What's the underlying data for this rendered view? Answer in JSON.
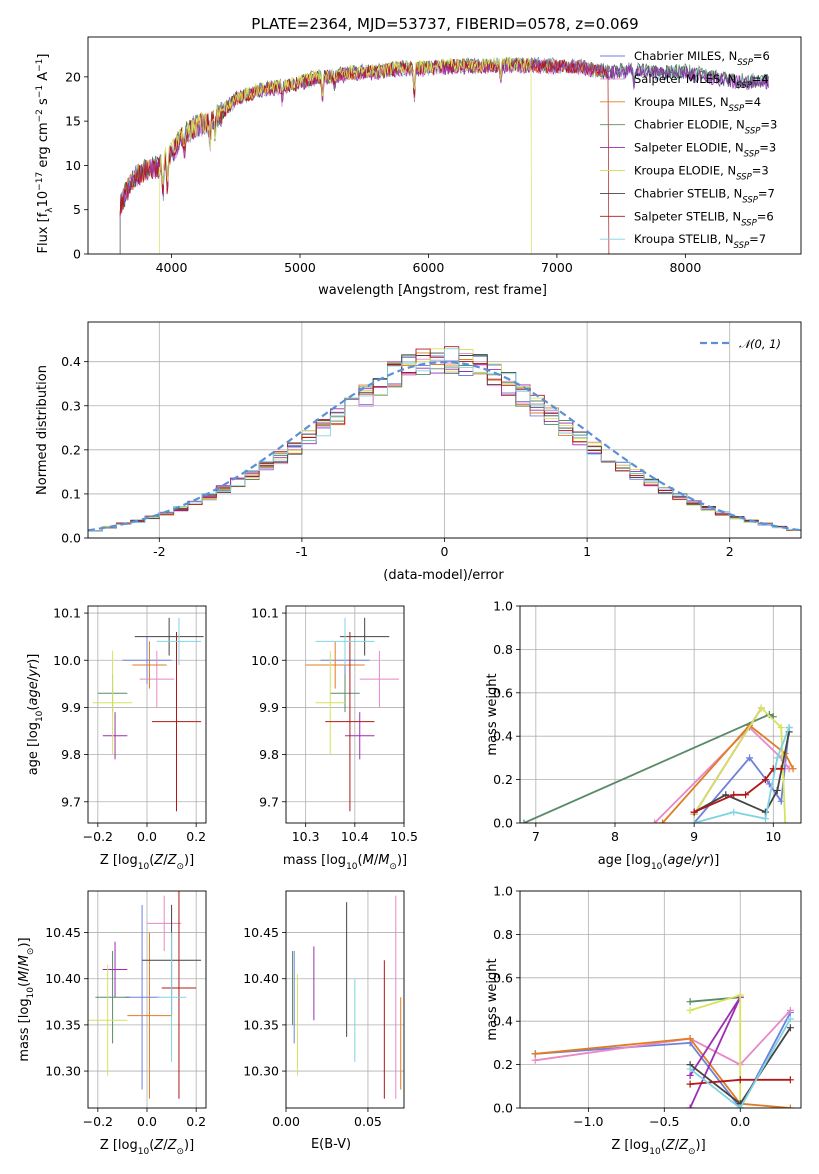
{
  "figure_title": "PLATE=2364, MJD=53737, FIBERID=0578, z=0.069",
  "colors": {
    "Chabrier MILES": "#6f7fe0",
    "Salpeter MILES": "#e888c8",
    "Kroupa MILES": "#e07c24",
    "Chabrier ELODIE": "#5a8a66",
    "Salpeter ELODIE": "#9c2eb4",
    "Kroupa ELODIE": "#d6e35c",
    "Chabrier STELIB": "#444444",
    "Salpeter STELIB": "#b01818",
    "Kroupa STELIB": "#80d4e0",
    "normal_fit": "#5b8fd6"
  },
  "chart_data": [
    {
      "id": "spectrum",
      "type": "line",
      "title": "PLATE=2364, MJD=53737, FIBERID=0578, z=0.069",
      "xlabel": "wavelength [Angstrom, rest frame]",
      "ylabel": "Flux [f_λ 10^-17 erg cm^-2 s^-1 A^-1]",
      "ylabel_parts": {
        "pre": "Flux [f",
        "sub": "λ",
        "mid": "10",
        "sup1": "−17",
        "mid2": " erg cm",
        "sup2": "−2",
        "mid3": " s",
        "sup3": "−1",
        "post": " A",
        "sup4": "−1",
        "end": "]"
      },
      "xlim": [
        3350,
        8900
      ],
      "ylim": [
        0,
        24.5
      ],
      "xticks": [
        4000,
        5000,
        6000,
        7000,
        8000
      ],
      "yticks": [
        0,
        5,
        10,
        15,
        20
      ],
      "continuum_x": [
        3600,
        3700,
        3800,
        3900,
        4000,
        4100,
        4200,
        4300,
        4400,
        4500,
        4600,
        4700,
        4800,
        4900,
        5000,
        5100,
        5200,
        5300,
        5400,
        5500,
        5600,
        5700,
        5800,
        5900,
        6000,
        6200,
        6400,
        6600,
        6800,
        7000,
        7200,
        7400,
        7600,
        7800,
        8000,
        8200,
        8400,
        8600
      ],
      "continuum_y": [
        5.5,
        8.5,
        9.5,
        9.8,
        11.5,
        13.5,
        14.5,
        14.8,
        16.0,
        17.5,
        18.0,
        18.5,
        18.8,
        19.0,
        19.3,
        19.8,
        20.0,
        20.2,
        20.4,
        20.6,
        20.5,
        20.8,
        21.0,
        20.9,
        21.0,
        21.2,
        21.2,
        21.3,
        21.3,
        21.2,
        21.1,
        20.5,
        20.8,
        20.5,
        20.6,
        20.0,
        19.5,
        19.5
      ],
      "models": [
        {
          "label": "Chabrier MILES",
          "nssp": 6
        },
        {
          "label": "Salpeter MILES",
          "nssp": 4
        },
        {
          "label": "Kroupa MILES",
          "nssp": 4
        },
        {
          "label": "Chabrier ELODIE",
          "nssp": 3
        },
        {
          "label": "Salpeter ELODIE",
          "nssp": 3
        },
        {
          "label": "Kroupa ELODIE",
          "nssp": 3
        },
        {
          "label": "Chabrier STELIB",
          "nssp": 7
        },
        {
          "label": "Salpeter STELIB",
          "nssp": 6
        },
        {
          "label": "Kroupa STELIB",
          "nssp": 7
        }
      ],
      "wavelength_ranges": [
        {
          "label": "Chabrier MILES",
          "xmin": 3600,
          "xmax": 7400
        },
        {
          "label": "Salpeter MILES",
          "xmin": 3600,
          "xmax": 7400
        },
        {
          "label": "Kroupa MILES",
          "xmin": 3600,
          "xmax": 7400
        },
        {
          "label": "Kroupa ELODIE",
          "xmin": 3900,
          "xmax": 6800
        },
        {
          "label": "Salpeter STELIB",
          "xmin": 3600,
          "xmax": 7400
        }
      ]
    },
    {
      "id": "residuals",
      "type": "step",
      "xlabel": "(data-model)/error",
      "ylabel": "Normed distribution",
      "xlim": [
        -2.5,
        2.5
      ],
      "ylim": [
        0,
        0.49
      ],
      "xticks": [
        -2,
        -1,
        0,
        1,
        2
      ],
      "yticks": [
        0.0,
        0.1,
        0.2,
        0.3,
        0.4
      ],
      "bins": [
        -2.5,
        -2.4,
        -2.3,
        -2.2,
        -2.1,
        -2.0,
        -1.9,
        -1.8,
        -1.7,
        -1.6,
        -1.5,
        -1.4,
        -1.3,
        -1.2,
        -1.1,
        -1.0,
        -0.9,
        -0.8,
        -0.7,
        -0.6,
        -0.5,
        -0.4,
        -0.3,
        -0.2,
        -0.1,
        0.0,
        0.1,
        0.2,
        0.3,
        0.4,
        0.5,
        0.6,
        0.7,
        0.8,
        0.9,
        1.0,
        1.1,
        1.2,
        1.3,
        1.4,
        1.5,
        1.6,
        1.7,
        1.8,
        1.9,
        2.0,
        2.1,
        2.2,
        2.3,
        2.4,
        2.5
      ],
      "base_hist": [
        0.018,
        0.025,
        0.032,
        0.038,
        0.046,
        0.056,
        0.067,
        0.08,
        0.094,
        0.11,
        0.126,
        0.144,
        0.163,
        0.183,
        0.204,
        0.226,
        0.25,
        0.275,
        0.3,
        0.324,
        0.348,
        0.37,
        0.386,
        0.398,
        0.405,
        0.405,
        0.398,
        0.386,
        0.37,
        0.348,
        0.324,
        0.3,
        0.275,
        0.25,
        0.226,
        0.204,
        0.183,
        0.163,
        0.144,
        0.126,
        0.11,
        0.094,
        0.08,
        0.067,
        0.056,
        0.046,
        0.038,
        0.032,
        0.025,
        0.018
      ],
      "legend": {
        "label": "𝒩(0, 1)",
        "position": "upper right"
      },
      "grid": true
    },
    {
      "id": "age_vs_z",
      "type": "errorbar",
      "xlabel": "Z [log10(Z/Z_sun)]",
      "ylabel": "age [log10(age/yr)]",
      "xlim": [
        -0.24,
        0.24
      ],
      "ylim": [
        9.655,
        10.115
      ],
      "xticks": [
        -0.2,
        0.0,
        0.2
      ],
      "xticklabels": [
        "−0.2",
        "0.0",
        "0.2"
      ],
      "yticks": [
        9.7,
        9.8,
        9.9,
        10.0,
        10.1
      ],
      "points": [
        {
          "model": "Chabrier MILES",
          "x": 0.0,
          "xerr": 0.1,
          "y": 10.0,
          "yerr": 0.05
        },
        {
          "model": "Salpeter MILES",
          "x": 0.04,
          "xerr": 0.07,
          "y": 9.96,
          "yerr": 0.06
        },
        {
          "model": "Kroupa MILES",
          "x": 0.01,
          "xerr": 0.07,
          "y": 9.99,
          "yerr": 0.05
        },
        {
          "model": "Chabrier ELODIE",
          "x": -0.14,
          "xerr": 0.06,
          "y": 9.93,
          "yerr": 0.04
        },
        {
          "model": "Salpeter ELODIE",
          "x": -0.13,
          "xerr": 0.05,
          "y": 9.84,
          "yerr": 0.05
        },
        {
          "model": "Kroupa ELODIE",
          "x": -0.14,
          "xerr": 0.08,
          "y": 9.91,
          "yerr": 0.11
        },
        {
          "model": "Chabrier STELIB",
          "x": 0.09,
          "xerr": 0.14,
          "y": 10.05,
          "yerr": 0.04
        },
        {
          "model": "Salpeter STELIB",
          "x": 0.12,
          "xerr": 0.1,
          "y": 9.87,
          "yerr": 0.19
        },
        {
          "model": "Kroupa STELIB",
          "x": 0.13,
          "xerr": 0.09,
          "y": 10.04,
          "yerr": 0.05
        }
      ],
      "grid": true
    },
    {
      "id": "age_vs_mass",
      "type": "errorbar",
      "xlabel": "mass [log10(M/M_sun)]",
      "ylabel": "",
      "xlim": [
        10.26,
        10.5
      ],
      "ylim": [
        9.655,
        10.115
      ],
      "xticks": [
        10.3,
        10.4,
        10.5
      ],
      "yticks": [
        9.7,
        9.8,
        9.9,
        10.0,
        10.1
      ],
      "points": [
        {
          "model": "Chabrier MILES",
          "x": 10.38,
          "xerr": 0.05,
          "y": 10.0,
          "yerr": 0.05
        },
        {
          "model": "Salpeter MILES",
          "x": 10.45,
          "xerr": 0.04,
          "y": 9.96,
          "yerr": 0.06
        },
        {
          "model": "Kroupa MILES",
          "x": 10.36,
          "xerr": 0.06,
          "y": 9.99,
          "yerr": 0.05
        },
        {
          "model": "Chabrier ELODIE",
          "x": 10.38,
          "xerr": 0.03,
          "y": 9.93,
          "yerr": 0.04
        },
        {
          "model": "Salpeter ELODIE",
          "x": 10.41,
          "xerr": 0.03,
          "y": 9.84,
          "yerr": 0.05
        },
        {
          "model": "Kroupa ELODIE",
          "x": 10.35,
          "xerr": 0.03,
          "y": 9.91,
          "yerr": 0.11
        },
        {
          "model": "Chabrier STELIB",
          "x": 10.42,
          "xerr": 0.05,
          "y": 10.05,
          "yerr": 0.04
        },
        {
          "model": "Salpeter STELIB",
          "x": 10.39,
          "xerr": 0.05,
          "y": 9.87,
          "yerr": 0.19
        },
        {
          "model": "Kroupa STELIB",
          "x": 10.38,
          "xerr": 0.06,
          "y": 10.04,
          "yerr": 0.05
        }
      ],
      "grid": true
    },
    {
      "id": "mass_weight_vs_age",
      "type": "line",
      "xlabel": "age log10(age/yr)",
      "ylabel": "mass weight",
      "xlim": [
        6.8,
        10.35
      ],
      "ylim": [
        0,
        1
      ],
      "xticks": [
        7,
        8,
        9,
        10
      ],
      "yticks": [
        0.0,
        0.2,
        0.4,
        0.6,
        0.8,
        1.0
      ],
      "yticklabels": [
        "0.0",
        "0.2",
        "0.4",
        "0.6",
        "0.8",
        "1.0"
      ],
      "series": [
        {
          "model": "Chabrier MILES",
          "x": [
            9.0,
            9.7,
            9.95,
            10.1,
            10.2
          ],
          "y": [
            0.0,
            0.3,
            0.18,
            0.1,
            0.44
          ]
        },
        {
          "model": "Salpeter MILES",
          "x": [
            8.5,
            9.7,
            10.1,
            10.2
          ],
          "y": [
            0.0,
            0.44,
            0.3,
            0.25
          ]
        },
        {
          "model": "Kroupa MILES",
          "x": [
            8.6,
            9.7,
            10.15,
            10.25
          ],
          "y": [
            0.0,
            0.45,
            0.32,
            0.25
          ]
        },
        {
          "model": "Chabrier ELODIE",
          "x": [
            6.85,
            9.95,
            10.0
          ],
          "y": [
            0.0,
            0.5,
            0.49
          ]
        },
        {
          "model": "Salpeter ELODIE",
          "x": [
            9.0,
            9.85,
            9.0
          ],
          "y": [
            0.04,
            0.53,
            0.04
          ]
        },
        {
          "model": "Kroupa ELODIE",
          "x": [
            9.0,
            9.85,
            10.1,
            10.15
          ],
          "y": [
            0.04,
            0.53,
            0.44,
            0.0
          ]
        },
        {
          "model": "Chabrier STELIB",
          "x": [
            9.0,
            9.4,
            9.9,
            10.05,
            10.2
          ],
          "y": [
            0.05,
            0.13,
            0.05,
            0.15,
            0.42
          ]
        },
        {
          "model": "Salpeter STELIB",
          "x": [
            9.0,
            9.5,
            9.65,
            9.9,
            10.0,
            10.1
          ],
          "y": [
            0.05,
            0.13,
            0.13,
            0.2,
            0.25,
            0.25
          ]
        },
        {
          "model": "Kroupa STELIB",
          "x": [
            9.0,
            9.5,
            9.9,
            10.05,
            10.2
          ],
          "y": [
            0.0,
            0.05,
            0.02,
            0.3,
            0.44
          ]
        }
      ],
      "grid": true
    },
    {
      "id": "mass_vs_z",
      "type": "errorbar",
      "xlabel": "Z [log10(Z/Z_sun)]",
      "ylabel": "mass [log10(M/M_sun)]",
      "xlim": [
        -0.24,
        0.24
      ],
      "ylim": [
        10.26,
        10.495
      ],
      "xticks": [
        -0.2,
        0.0,
        0.2
      ],
      "xticklabels": [
        "−0.2",
        "0.0",
        "0.2"
      ],
      "yticks": [
        10.3,
        10.35,
        10.4,
        10.45
      ],
      "points": [
        {
          "model": "Chabrier MILES",
          "x": -0.02,
          "xerr": 0.07,
          "y": 10.38,
          "yerr": 0.1
        },
        {
          "model": "Salpeter MILES",
          "x": 0.07,
          "xerr": 0.07,
          "y": 10.46,
          "yerr": 0.03
        },
        {
          "model": "Kroupa MILES",
          "x": 0.01,
          "xerr": 0.09,
          "y": 10.36,
          "yerr": 0.09
        },
        {
          "model": "Chabrier ELODIE",
          "x": -0.14,
          "xerr": 0.07,
          "y": 10.38,
          "yerr": 0.05
        },
        {
          "model": "Salpeter ELODIE",
          "x": -0.13,
          "xerr": 0.05,
          "y": 10.41,
          "yerr": 0.03
        },
        {
          "model": "Kroupa ELODIE",
          "x": -0.16,
          "xerr": 0.08,
          "y": 10.355,
          "yerr": 0.06
        },
        {
          "model": "Chabrier STELIB",
          "x": 0.1,
          "xerr": 0.12,
          "y": 10.42,
          "yerr": 0.06
        },
        {
          "model": "Salpeter STELIB",
          "x": 0.13,
          "xerr": 0.07,
          "y": 10.39,
          "yerr": 0.12
        },
        {
          "model": "Kroupa STELIB",
          "x": 0.1,
          "xerr": 0.06,
          "y": 10.38,
          "yerr": 0.07
        }
      ],
      "grid": true
    },
    {
      "id": "mass_vs_ebv",
      "type": "errorbar",
      "xlabel": "E(B-V)",
      "ylabel": "",
      "xlim": [
        0.0,
        0.072
      ],
      "ylim": [
        10.26,
        10.495
      ],
      "xticks": [
        0.0,
        0.05
      ],
      "xticklabels": [
        "0.00",
        "0.05"
      ],
      "yticks": [
        10.3,
        10.35,
        10.4,
        10.45
      ],
      "points": [
        {
          "model": "Chabrier MILES",
          "x": 0.005,
          "y": 10.38,
          "yerr": 0.05
        },
        {
          "model": "Salpeter MILES",
          "x": 0.067,
          "y": 10.38,
          "yerr": 0.11
        },
        {
          "model": "Kroupa MILES",
          "x": 0.07,
          "y": 10.33,
          "yerr": 0.05
        },
        {
          "model": "Chabrier ELODIE",
          "x": 0.004,
          "y": 10.39,
          "yerr": 0.04
        },
        {
          "model": "Salpeter ELODIE",
          "x": 0.017,
          "y": 10.395,
          "yerr": 0.04
        },
        {
          "model": "Kroupa ELODIE",
          "x": 0.007,
          "y": 10.35,
          "yerr": 0.055
        },
        {
          "model": "Chabrier STELIB",
          "x": 0.037,
          "y": 10.41,
          "yerr": 0.073
        },
        {
          "model": "Salpeter STELIB",
          "x": 0.06,
          "y": 10.345,
          "yerr": 0.075
        },
        {
          "model": "Kroupa STELIB",
          "x": 0.042,
          "y": 10.355,
          "yerr": 0.045
        }
      ],
      "grid": true
    },
    {
      "id": "mass_weight_vs_z",
      "type": "line",
      "xlabel": "Z [log10(Z/Z_sun)]",
      "ylabel": "mass weight",
      "xlim": [
        -1.45,
        0.4
      ],
      "ylim": [
        0,
        1
      ],
      "xticks": [
        -1.0,
        -0.5,
        0.0
      ],
      "xticklabels": [
        "−1.0",
        "−0.5",
        "0.0"
      ],
      "yticks": [
        0.0,
        0.2,
        0.4,
        0.6,
        0.8,
        1.0
      ],
      "yticklabels": [
        "0.0",
        "0.2",
        "0.4",
        "0.6",
        "0.8",
        "1.0"
      ],
      "series": [
        {
          "model": "Chabrier MILES",
          "x": [
            -1.35,
            -0.33,
            0.0,
            0.33
          ],
          "y": [
            0.25,
            0.3,
            0.0,
            0.44
          ]
        },
        {
          "model": "Salpeter MILES",
          "x": [
            -1.35,
            -0.33,
            0.0,
            0.33
          ],
          "y": [
            0.22,
            0.32,
            0.2,
            0.45
          ]
        },
        {
          "model": "Kroupa MILES",
          "x": [
            -1.35,
            -0.33,
            0.0,
            0.33
          ],
          "y": [
            0.25,
            0.32,
            0.02,
            0.0
          ]
        },
        {
          "model": "Chabrier ELODIE",
          "x": [
            -0.33,
            0.0
          ],
          "y": [
            0.49,
            0.51
          ]
        },
        {
          "model": "Salpeter ELODIE",
          "x": [
            -0.33,
            0.0,
            -0.33
          ],
          "y": [
            0.0,
            0.51,
            0.15
          ]
        },
        {
          "model": "Kroupa ELODIE",
          "x": [
            -0.33,
            0.0,
            0.0
          ],
          "y": [
            0.45,
            0.52,
            0.0
          ]
        },
        {
          "model": "Chabrier STELIB",
          "x": [
            -0.33,
            0.0,
            0.33
          ],
          "y": [
            0.2,
            0.02,
            0.37
          ]
        },
        {
          "model": "Salpeter STELIB",
          "x": [
            -0.33,
            0.0,
            0.33
          ],
          "y": [
            0.11,
            0.13,
            0.13
          ]
        },
        {
          "model": "Kroupa STELIB",
          "x": [
            -0.33,
            0.0,
            0.33
          ],
          "y": [
            0.18,
            0.0,
            0.41
          ]
        }
      ],
      "grid": true
    }
  ]
}
